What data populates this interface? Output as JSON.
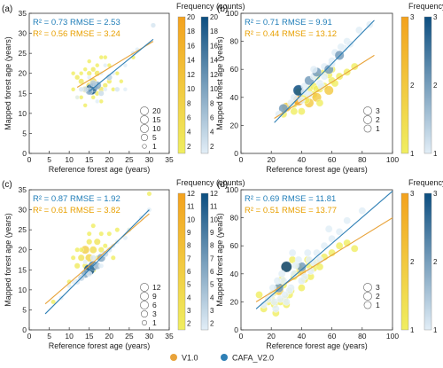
{
  "colors": {
    "v1": "#E8A33A",
    "cafa": "#2E7FB5",
    "v1_grad": [
      "#F0EE60",
      "#F3A21E"
    ],
    "cafa_grad": [
      "#E2EEF7",
      "#0C4E80"
    ],
    "annot_v1": "#E8A000",
    "annot_cafa": "#1F7DB8"
  },
  "figure_title": "",
  "legend": {
    "v1": "V1.0",
    "cafa": "CAFA_V2.0"
  },
  "chart_data": [
    {
      "panel": "(a)",
      "type": "scatter",
      "xlabel": "Reference forest age (years)",
      "ylabel": "Mapped forest age (years)",
      "xlim": [
        0,
        35
      ],
      "ylim": [
        0,
        35
      ],
      "xticks": [
        "0",
        "5",
        "10",
        "15",
        "20",
        "25",
        "30",
        "35"
      ],
      "yticks": [
        "0",
        "5",
        "10",
        "15",
        "20",
        "25",
        "30",
        "35"
      ],
      "stats_cafa": "R² = 0.73 RMSE = 2.53",
      "stats_v1": "R² = 0.56 RMSE = 3.24",
      "colorbar_title": "Frequency (counts)",
      "colorbar_ticks": [
        "2",
        "4",
        "6",
        "8",
        "10",
        "12",
        "14",
        "16",
        "18",
        "20"
      ],
      "colorbar_range": [
        1,
        20
      ],
      "size_legend": [
        "20",
        "15",
        "10",
        "5",
        "1"
      ],
      "fit_cafa": {
        "x": [
          15,
          31
        ],
        "y": [
          15.5,
          28.5
        ]
      },
      "fit_v1": {
        "x": [
          12,
          31
        ],
        "y": [
          16.5,
          28
        ]
      },
      "points_cafa": [
        [
          15.5,
          16,
          20
        ],
        [
          16,
          16.5,
          14
        ],
        [
          17,
          17,
          9
        ],
        [
          15,
          15.5,
          7
        ],
        [
          16,
          17.5,
          5
        ],
        [
          20,
          19,
          4
        ],
        [
          18,
          15,
          3
        ],
        [
          14,
          16,
          3
        ],
        [
          26,
          25,
          2
        ],
        [
          31,
          32,
          2
        ],
        [
          22,
          16,
          2
        ],
        [
          13,
          16,
          2
        ],
        [
          19,
          22,
          1
        ],
        [
          17,
          13,
          1
        ],
        [
          24,
          22,
          1
        ],
        [
          27,
          26,
          1
        ],
        [
          12,
          14,
          1
        ],
        [
          21,
          20,
          1
        ],
        [
          15,
          19,
          1
        ],
        [
          18,
          20,
          1
        ],
        [
          19,
          16,
          1
        ],
        [
          24,
          16,
          1
        ]
      ],
      "points_v1": [
        [
          16,
          18,
          6
        ],
        [
          14,
          16,
          5
        ],
        [
          15,
          17,
          4
        ],
        [
          17,
          20,
          3
        ],
        [
          18,
          16,
          3
        ],
        [
          13,
          18,
          3
        ],
        [
          16,
          21,
          2
        ],
        [
          19,
          17,
          2
        ],
        [
          12,
          19,
          2
        ],
        [
          20,
          18,
          2
        ],
        [
          15,
          20,
          2
        ],
        [
          17,
          15,
          2
        ],
        [
          14,
          21,
          1
        ],
        [
          13,
          14,
          1
        ],
        [
          19,
          24,
          1
        ],
        [
          21,
          16,
          1
        ],
        [
          15,
          23,
          1
        ],
        [
          17,
          22,
          1
        ],
        [
          11,
          16,
          1
        ],
        [
          12,
          14,
          1
        ],
        [
          22,
          20,
          1
        ],
        [
          18,
          24,
          1
        ],
        [
          16,
          14,
          1
        ],
        [
          20,
          22,
          1
        ],
        [
          14,
          12,
          1
        ],
        [
          26,
          24,
          1
        ],
        [
          13,
          20,
          1
        ],
        [
          18,
          13,
          1
        ],
        [
          23,
          18,
          1
        ],
        [
          11,
          20,
          1
        ]
      ]
    },
    {
      "panel": "(b)",
      "type": "scatter",
      "xlabel": "Reference forest age (years)",
      "ylabel": "Mapped forest age (years)",
      "xlim": [
        0,
        100
      ],
      "ylim": [
        0,
        100
      ],
      "xticks": [
        "0",
        "20",
        "40",
        "60",
        "80",
        "100"
      ],
      "yticks": [
        "0",
        "20",
        "40",
        "60",
        "80",
        "100"
      ],
      "stats_cafa": "R² = 0.71 RMSE = 9.91",
      "stats_v1": "R² = 0.44 RMSE = 13.12",
      "colorbar_title": "Frequency (counts)",
      "colorbar_ticks": [
        "1",
        "2",
        "3"
      ],
      "colorbar_range": [
        1,
        3
      ],
      "size_legend": [
        "3",
        "2",
        "1"
      ],
      "fit_cafa": {
        "x": [
          22,
          88
        ],
        "y": [
          22,
          95
        ]
      },
      "fit_v1": {
        "x": [
          22,
          88
        ],
        "y": [
          25,
          70
        ]
      },
      "points_cafa": [
        [
          28,
          32,
          2
        ],
        [
          35,
          40,
          1
        ],
        [
          38,
          45,
          3
        ],
        [
          42,
          48,
          1
        ],
        [
          45,
          52,
          2
        ],
        [
          48,
          55,
          1
        ],
        [
          50,
          58,
          2
        ],
        [
          52,
          50,
          1
        ],
        [
          55,
          62,
          1
        ],
        [
          58,
          60,
          2
        ],
        [
          60,
          66,
          1
        ],
        [
          62,
          72,
          1
        ],
        [
          65,
          70,
          2
        ],
        [
          68,
          75,
          1
        ],
        [
          70,
          80,
          1
        ],
        [
          45,
          42,
          1
        ],
        [
          40,
          38,
          1
        ],
        [
          55,
          55,
          1
        ],
        [
          33,
          36,
          1
        ],
        [
          72,
          78,
          1
        ],
        [
          60,
          64,
          1
        ],
        [
          48,
          60,
          1
        ],
        [
          25,
          28,
          1
        ],
        [
          85,
          92,
          1
        ],
        [
          78,
          88,
          1
        ],
        [
          42,
          44,
          1
        ],
        [
          53,
          48,
          1
        ],
        [
          66,
          76,
          1
        ]
      ],
      "points_v1": [
        [
          30,
          33,
          2
        ],
        [
          35,
          35,
          1
        ],
        [
          38,
          38,
          3
        ],
        [
          42,
          40,
          1
        ],
        [
          45,
          36,
          2
        ],
        [
          48,
          42,
          1
        ],
        [
          50,
          40,
          2
        ],
        [
          52,
          46,
          1
        ],
        [
          55,
          48,
          1
        ],
        [
          58,
          45,
          2
        ],
        [
          60,
          52,
          1
        ],
        [
          62,
          50,
          1
        ],
        [
          40,
          30,
          1
        ],
        [
          45,
          46,
          1
        ],
        [
          50,
          55,
          1
        ],
        [
          55,
          58,
          1
        ],
        [
          28,
          28,
          1
        ],
        [
          65,
          55,
          1
        ],
        [
          70,
          58,
          1
        ],
        [
          48,
          48,
          1
        ],
        [
          35,
          30,
          1
        ],
        [
          52,
          36,
          1
        ],
        [
          58,
          56,
          1
        ],
        [
          75,
          62,
          1
        ],
        [
          43,
          38,
          1
        ],
        [
          60,
          60,
          1
        ],
        [
          38,
          44,
          1
        ],
        [
          50,
          46,
          1
        ]
      ]
    },
    {
      "panel": "(c)",
      "type": "scatter",
      "xlabel": "Reference forest age (years)",
      "ylabel": "Mapped forest age (years)",
      "xlim": [
        0,
        35
      ],
      "ylim": [
        0,
        35
      ],
      "xticks": [
        "0",
        "5",
        "10",
        "15",
        "20",
        "25",
        "30",
        "35"
      ],
      "yticks": [
        "0",
        "5",
        "10",
        "15",
        "20",
        "25",
        "30",
        "35"
      ],
      "stats_cafa": "R² = 0.87 RMSE = 1.92",
      "stats_v1": "R² = 0.61 RMSE = 3.82",
      "colorbar_title": "Frequency (counts)",
      "colorbar_ticks": [
        "2",
        "3",
        "4",
        "5",
        "6",
        "7",
        "8",
        "9",
        "10",
        "11",
        "12"
      ],
      "colorbar_range": [
        1.5,
        12
      ],
      "size_legend": [
        "12",
        "9",
        "6",
        "3",
        "1"
      ],
      "fit_cafa": {
        "x": [
          4,
          30
        ],
        "y": [
          4,
          30
        ]
      },
      "fit_v1": {
        "x": [
          4,
          30
        ],
        "y": [
          6.5,
          29
        ]
      },
      "points_cafa": [
        [
          15,
          15,
          12
        ],
        [
          16,
          16,
          9
        ],
        [
          18,
          18,
          6
        ],
        [
          14,
          14,
          6
        ],
        [
          17,
          16,
          4
        ],
        [
          19,
          19,
          3
        ],
        [
          13,
          13,
          3
        ],
        [
          12,
          12,
          2
        ],
        [
          20,
          20,
          2
        ],
        [
          16,
          18,
          2
        ],
        [
          15,
          14,
          2
        ],
        [
          22,
          22,
          1
        ],
        [
          25,
          25,
          1
        ],
        [
          28,
          28,
          1
        ],
        [
          8,
          8,
          1
        ],
        [
          10,
          11,
          1
        ],
        [
          30,
          30,
          1
        ],
        [
          21,
          21,
          1
        ],
        [
          14,
          17,
          1
        ],
        [
          11,
          12,
          1
        ],
        [
          24,
          23,
          1
        ],
        [
          18,
          16,
          1
        ]
      ],
      "points_v1": [
        [
          14,
          20,
          6
        ],
        [
          15,
          18,
          5
        ],
        [
          16,
          20,
          4
        ],
        [
          13,
          18,
          3
        ],
        [
          17,
          22,
          3
        ],
        [
          12,
          16,
          2
        ],
        [
          18,
          20,
          2
        ],
        [
          15,
          22,
          2
        ],
        [
          16,
          15,
          2
        ],
        [
          14,
          16,
          2
        ],
        [
          20,
          24,
          1
        ],
        [
          19,
          21,
          1
        ],
        [
          13,
          20,
          1
        ],
        [
          11,
          18,
          1
        ],
        [
          17,
          18,
          1
        ],
        [
          10,
          12,
          1
        ],
        [
          15,
          24,
          1
        ],
        [
          22,
          25,
          1
        ],
        [
          25,
          25,
          1
        ],
        [
          18,
          24,
          1
        ],
        [
          12,
          20,
          1
        ],
        [
          16,
          26,
          1
        ],
        [
          6,
          7,
          1
        ],
        [
          30,
          34,
          1
        ],
        [
          21,
          18,
          1
        ]
      ]
    },
    {
      "panel": "(d)",
      "type": "scatter",
      "xlabel": "Reference forest age (years)",
      "ylabel": "Mapped forest age (years)",
      "xlim": [
        0,
        100
      ],
      "ylim": [
        0,
        100
      ],
      "xticks": [
        "0",
        "20",
        "40",
        "60",
        "80",
        "100"
      ],
      "yticks": [
        "0",
        "20",
        "40",
        "60",
        "80",
        "100"
      ],
      "stats_cafa": "R² = 0.69 RMSE = 11.81",
      "stats_v1": "R² = 0.51 RMSE = 13.77",
      "colorbar_title": "Frequency (counts)",
      "colorbar_ticks": [
        "1",
        "2",
        "3"
      ],
      "colorbar_range": [
        1,
        3
      ],
      "size_legend": [
        "3",
        "2",
        "1"
      ],
      "fit_cafa": {
        "x": [
          10,
          100
        ],
        "y": [
          15,
          99
        ]
      },
      "fit_v1": {
        "x": [
          10,
          100
        ],
        "y": [
          20,
          80
        ]
      },
      "points_cafa": [
        [
          30,
          45,
          3
        ],
        [
          25,
          30,
          2
        ],
        [
          20,
          25,
          1
        ],
        [
          35,
          40,
          1
        ],
        [
          40,
          45,
          2
        ],
        [
          28,
          35,
          1
        ],
        [
          22,
          20,
          1
        ],
        [
          45,
          50,
          1
        ],
        [
          50,
          55,
          1
        ],
        [
          18,
          22,
          1
        ],
        [
          33,
          30,
          1
        ],
        [
          38,
          50,
          1
        ],
        [
          42,
          38,
          1
        ],
        [
          55,
          60,
          1
        ],
        [
          60,
          65,
          1
        ],
        [
          27,
          40,
          1
        ],
        [
          32,
          28,
          1
        ],
        [
          15,
          18,
          1
        ],
        [
          48,
          48,
          1
        ],
        [
          65,
          70,
          1
        ],
        [
          70,
          78,
          1
        ],
        [
          26,
          22,
          1
        ],
        [
          36,
          46,
          1
        ],
        [
          24,
          35,
          1
        ],
        [
          44,
          55,
          1
        ],
        [
          52,
          50,
          1
        ],
        [
          58,
          72,
          1
        ],
        [
          30,
          20,
          1
        ],
        [
          21,
          30,
          1
        ],
        [
          80,
          85,
          1
        ],
        [
          29,
          25,
          1
        ],
        [
          40,
          35,
          1
        ],
        [
          34,
          55,
          1
        ],
        [
          46,
          42,
          1
        ],
        [
          23,
          15,
          1
        ]
      ],
      "points_v1": [
        [
          30,
          45,
          3
        ],
        [
          25,
          28,
          2
        ],
        [
          20,
          22,
          1
        ],
        [
          35,
          38,
          1
        ],
        [
          40,
          42,
          2
        ],
        [
          28,
          32,
          1
        ],
        [
          22,
          18,
          1
        ],
        [
          45,
          46,
          1
        ],
        [
          50,
          48,
          1
        ],
        [
          18,
          20,
          1
        ],
        [
          33,
          28,
          1
        ],
        [
          38,
          45,
          1
        ],
        [
          42,
          36,
          1
        ],
        [
          55,
          52,
          1
        ],
        [
          60,
          55,
          1
        ],
        [
          27,
          36,
          1
        ],
        [
          32,
          25,
          1
        ],
        [
          15,
          15,
          1
        ],
        [
          48,
          44,
          1
        ],
        [
          65,
          60,
          1
        ],
        [
          26,
          20,
          1
        ],
        [
          36,
          40,
          1
        ],
        [
          24,
          30,
          1
        ],
        [
          44,
          50,
          1
        ],
        [
          52,
          45,
          1
        ],
        [
          30,
          18,
          1
        ],
        [
          21,
          26,
          1
        ],
        [
          29,
          22,
          1
        ],
        [
          40,
          30,
          1
        ],
        [
          34,
          50,
          1
        ],
        [
          46,
          38,
          1
        ],
        [
          23,
          12,
          1
        ],
        [
          70,
          62,
          1
        ],
        [
          12,
          25,
          1
        ],
        [
          75,
          58,
          1
        ]
      ]
    }
  ]
}
